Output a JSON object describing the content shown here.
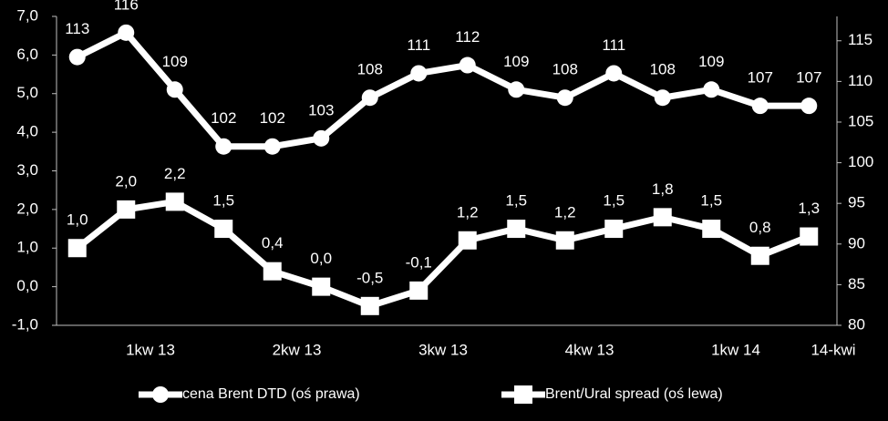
{
  "chart_data": {
    "type": "line",
    "categories": [
      null,
      "1kw 13",
      null,
      null,
      "2kw 13",
      null,
      null,
      "3kw 13",
      null,
      null,
      "4kw 13",
      null,
      null,
      "1kw 14",
      null,
      "14-kwi"
    ],
    "series": [
      {
        "name": "cena Brent DTD (oś prawa)",
        "color": "#ffffff",
        "axis": "y2",
        "marker": "circle",
        "values": [
          113,
          116,
          109,
          102,
          102,
          103,
          108,
          111,
          112,
          109,
          108,
          111,
          108,
          109,
          107,
          107
        ]
      },
      {
        "name": "Brent/Ural spread (oś lewa)",
        "color": "#ffffff",
        "marker": "square",
        "values": [
          1.0,
          2.0,
          2.2,
          1.5,
          0.4,
          0.0,
          -0.5,
          -0.1,
          1.2,
          1.5,
          1.2,
          1.5,
          1.8,
          1.5,
          0.8,
          1.3
        ],
        "value_labels": [
          "1,0",
          "2,0",
          "2,2",
          "1,5",
          "0,4",
          "0,0",
          "-0,5",
          "-0,1",
          "1,2",
          "1,5",
          "1,2",
          "1,5",
          "1,8",
          "1,5",
          "0,8",
          "1,3"
        ]
      }
    ],
    "ylim": [
      -1,
      7
    ],
    "yticks": [
      {
        "value": -1,
        "label": "-1,0"
      },
      {
        "value": 0,
        "label": "0,0"
      },
      {
        "value": 1,
        "label": "1,0"
      },
      {
        "value": 2,
        "label": "2,0"
      },
      {
        "value": 3,
        "label": "3,0"
      },
      {
        "value": 4,
        "label": "4,0"
      },
      {
        "value": 5,
        "label": "5,0"
      },
      {
        "value": 6,
        "label": "6,0"
      },
      {
        "value": 7,
        "label": "7,0"
      }
    ],
    "y2lim": [
      80,
      118
    ],
    "y2ticks": [
      80,
      85,
      90,
      95,
      100,
      105,
      110,
      115
    ],
    "legend": "bottom"
  }
}
